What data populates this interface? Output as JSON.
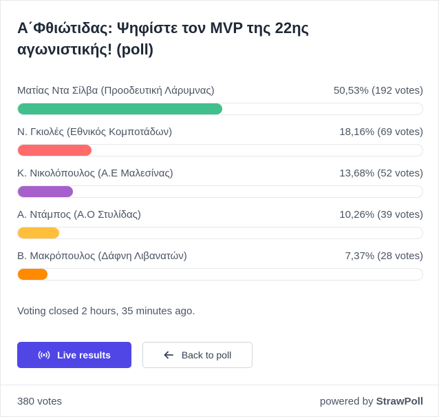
{
  "poll": {
    "title": "Α΄Φθιώτιδας: Ψηφίστε τον MVP της 22ης αγωνιστικής! (poll)",
    "options": [
      {
        "label": "Ματίας Ντα Σίλβα (Προοδευτική Λάρυμνας)",
        "result": "50,53% (192 votes)",
        "percent": 50.53,
        "color": "#41bf8d"
      },
      {
        "label": "Ν. Γκιολές (Εθνικός Κομποτάδων)",
        "result": "18,16% (69 votes)",
        "percent": 18.16,
        "color": "#ff6b6b"
      },
      {
        "label": "Κ. Νικολόπουλος (Α.Ε Μαλεσίνας)",
        "result": "13,68% (52 votes)",
        "percent": 13.68,
        "color": "#a660cc"
      },
      {
        "label": "Α. Ντάμπος (Α.Ο Στυλίδας)",
        "result": "10,26% (39 votes)",
        "percent": 10.26,
        "color": "#ffbf3c"
      },
      {
        "label": "Β. Μακρόπουλος (Δάφνη Λιβανατών)",
        "result": "7,37% (28 votes)",
        "percent": 7.37,
        "color": "#ff8a00"
      }
    ],
    "status": "Voting closed 2 hours, 35 minutes ago."
  },
  "buttons": {
    "live_label": "Live results",
    "live_icon": "broadcast-icon",
    "back_label": "Back to poll",
    "back_icon": "arrow-left-icon"
  },
  "footer": {
    "total": "380 votes",
    "powered_prefix": "powered by",
    "brand": "StrawPoll"
  }
}
